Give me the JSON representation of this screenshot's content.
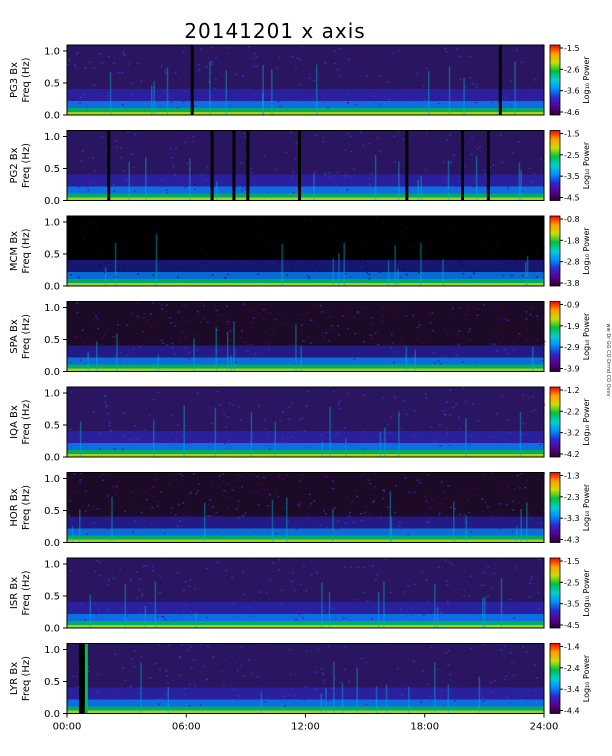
{
  "chart_data": {
    "type": "heatmap",
    "title": "20141201 x axis",
    "x_ticks": [
      "00:00",
      "06:00",
      "12:00",
      "18:00",
      "24:00"
    ],
    "x_range_hours": [
      0,
      24
    ],
    "y_range_hz": [
      0,
      1.0
    ],
    "y_ticks": [
      "0.0",
      "0.5",
      "1.0"
    ],
    "y_axis_label": "Freq (Hz)",
    "colorbar_label": "Log₁₀ Power",
    "side_note": "ww  Dr GG CO Drmd CO Ovvv",
    "colorscale": [
      "#2a0030",
      "#5a0090",
      "#2a2ad0",
      "#0090ff",
      "#00d0d0",
      "#00c040",
      "#c8e000",
      "#ffa000",
      "#ff0000"
    ],
    "panels": [
      {
        "station": "PG3 Bx",
        "colorbar_ticks": [
          "-1.5",
          "-2.6",
          "-3.6",
          "-4.6"
        ],
        "background": "medium",
        "gaps": [
          6.3,
          21.8
        ],
        "dark_band": null
      },
      {
        "station": "PG2 Bx",
        "colorbar_ticks": [
          "-1.5",
          "-2.5",
          "-3.5",
          "-4.5"
        ],
        "background": "medium",
        "gaps": [
          2.1,
          7.3,
          8.4,
          9.1,
          11.7,
          17.1,
          19.9,
          21.2
        ],
        "dark_band": null
      },
      {
        "station": "MCM Bx",
        "colorbar_ticks": [
          "-0.8",
          "-1.8",
          "-2.8",
          "-3.8"
        ],
        "background": "black",
        "gaps": [],
        "dark_band": null
      },
      {
        "station": "SPA Bx",
        "colorbar_ticks": [
          "-0.9",
          "-1.9",
          "-2.9",
          "-3.9"
        ],
        "background": "dark",
        "gaps": [],
        "dark_band": null
      },
      {
        "station": "IQA Bx",
        "colorbar_ticks": [
          "-1.2",
          "-2.2",
          "-3.2",
          "-4.2"
        ],
        "background": "medium",
        "gaps": [],
        "dark_band": null
      },
      {
        "station": "HOR Bx",
        "colorbar_ticks": [
          "-1.3",
          "-2.3",
          "-3.3",
          "-4.3"
        ],
        "background": "dark",
        "gaps": [],
        "dark_band": null
      },
      {
        "station": "ISR Bx",
        "colorbar_ticks": [
          "-1.5",
          "-2.5",
          "-3.5",
          "-4.5"
        ],
        "background": "medium",
        "gaps": [],
        "dark_band": null
      },
      {
        "station": "LYR Bx",
        "colorbar_ticks": [
          "-1.4",
          "-2.4",
          "-3.4",
          "-4.4"
        ],
        "background": "medium",
        "gaps": [],
        "dark_band": [
          0.6,
          0.9
        ]
      }
    ]
  }
}
